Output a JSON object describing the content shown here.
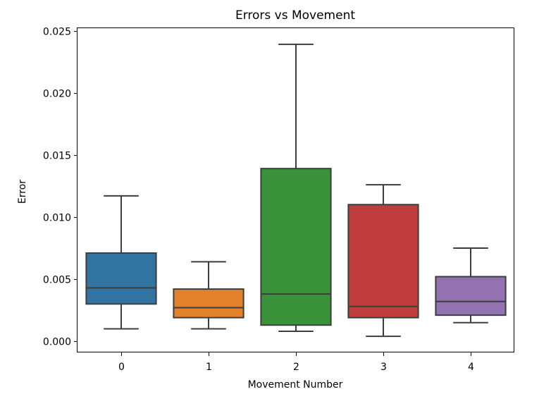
{
  "chart_data": {
    "type": "box",
    "title": "Errors vs Movement",
    "xlabel": "Movement Number",
    "ylabel": "Error",
    "ylim": [
      -0.0009,
      0.0252
    ],
    "y_ticks": [
      0.0,
      0.005,
      0.01,
      0.015,
      0.02,
      0.025
    ],
    "y_tick_labels": [
      "0.000",
      "0.005",
      "0.010",
      "0.015",
      "0.020",
      "0.025"
    ],
    "categories": [
      "0",
      "1",
      "2",
      "3",
      "4"
    ],
    "boxes": [
      {
        "category": "0",
        "whisker_low": 0.001,
        "q1": 0.003,
        "median": 0.0043,
        "q3": 0.0071,
        "whisker_high": 0.0117,
        "color": "#3274a1"
      },
      {
        "category": "1",
        "whisker_low": 0.001,
        "q1": 0.0019,
        "median": 0.0027,
        "q3": 0.0042,
        "whisker_high": 0.0064,
        "color": "#e1812c"
      },
      {
        "category": "2",
        "whisker_low": 0.0008,
        "q1": 0.0013,
        "median": 0.0038,
        "q3": 0.0139,
        "whisker_high": 0.0239,
        "color": "#3a923a"
      },
      {
        "category": "3",
        "whisker_low": 0.0004,
        "q1": 0.0019,
        "median": 0.0028,
        "q3": 0.011,
        "whisker_high": 0.0126,
        "color": "#c03d3e"
      },
      {
        "category": "4",
        "whisker_low": 0.0015,
        "q1": 0.0021,
        "median": 0.0032,
        "q3": 0.0052,
        "whisker_high": 0.0075,
        "color": "#9372b2"
      }
    ],
    "grid": false,
    "legend": "none",
    "box_edge_color": "#3d3d3d"
  }
}
